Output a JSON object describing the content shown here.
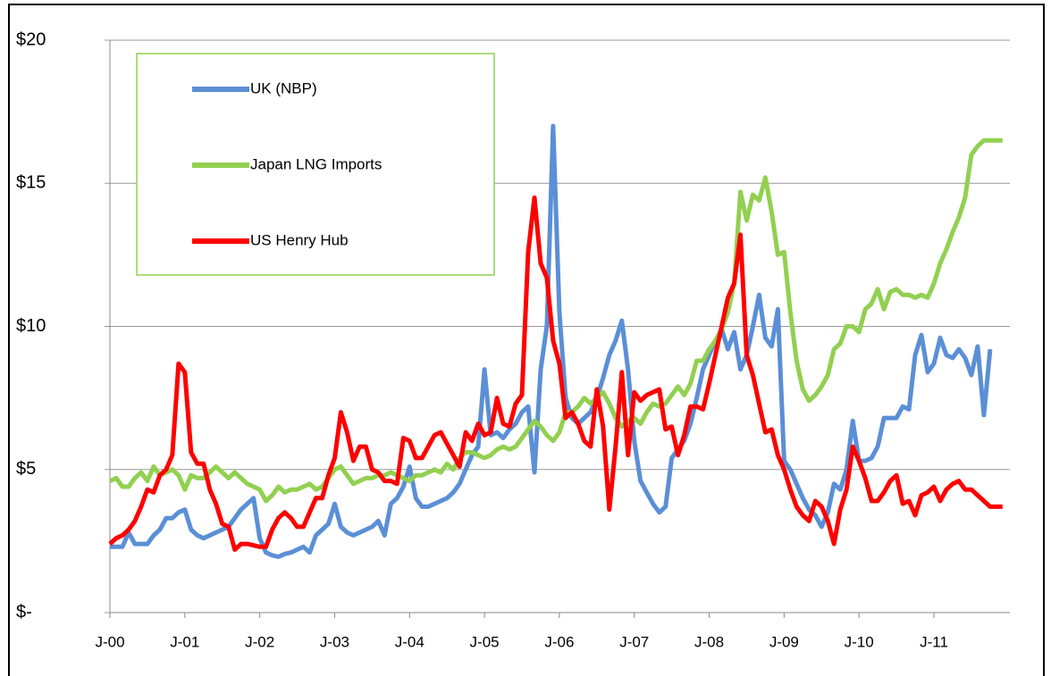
{
  "chart_data": {
    "type": "line",
    "categories": [
      "J-00",
      null,
      null,
      null,
      null,
      null,
      null,
      null,
      null,
      null,
      null,
      null,
      "J-01",
      null,
      null,
      null,
      null,
      null,
      null,
      null,
      null,
      null,
      null,
      null,
      "J-02",
      null,
      null,
      null,
      null,
      null,
      null,
      null,
      null,
      null,
      null,
      null,
      "J-03",
      null,
      null,
      null,
      null,
      null,
      null,
      null,
      null,
      null,
      null,
      null,
      "J-04",
      null,
      null,
      null,
      null,
      null,
      null,
      null,
      null,
      null,
      null,
      null,
      "J-05",
      null,
      null,
      null,
      null,
      null,
      null,
      null,
      null,
      null,
      null,
      null,
      "J-06",
      null,
      null,
      null,
      null,
      null,
      null,
      null,
      null,
      null,
      null,
      null,
      "J-07",
      null,
      null,
      null,
      null,
      null,
      null,
      null,
      null,
      null,
      null,
      null,
      "J-08",
      null,
      null,
      null,
      null,
      null,
      null,
      null,
      null,
      null,
      null,
      null,
      "J-09",
      null,
      null,
      null,
      null,
      null,
      null,
      null,
      null,
      null,
      null,
      null,
      "J-10",
      null,
      null,
      null,
      null,
      null,
      null,
      null,
      null,
      null,
      null,
      null,
      "J-11",
      null,
      null,
      null,
      null,
      null,
      null,
      null,
      null,
      null,
      null,
      null
    ],
    "series": [
      {
        "name": "UK (NBP)",
        "color": "#5b8fd6",
        "values": [
          2.3,
          2.3,
          2.3,
          2.8,
          2.4,
          2.4,
          2.4,
          2.7,
          2.9,
          3.3,
          3.3,
          3.5,
          3.6,
          2.9,
          2.7,
          2.6,
          2.7,
          2.8,
          2.9,
          3.0,
          3.3,
          3.6,
          3.8,
          4.0,
          2.6,
          2.1,
          2.0,
          1.95,
          2.05,
          2.1,
          2.2,
          2.3,
          2.1,
          2.7,
          2.9,
          3.1,
          3.8,
          3.0,
          2.8,
          2.7,
          2.8,
          2.9,
          3.0,
          3.2,
          2.7,
          3.8,
          4.0,
          4.4,
          5.1,
          4.0,
          3.7,
          3.7,
          3.8,
          3.9,
          4.0,
          4.2,
          4.5,
          5.0,
          5.5,
          5.8,
          8.5,
          6.2,
          6.3,
          6.1,
          6.4,
          6.6,
          7.0,
          7.2,
          4.9,
          8.5,
          10.0,
          17.0,
          10.5,
          7.5,
          6.8,
          6.6,
          6.8,
          7.0,
          7.5,
          8.2,
          9.0,
          9.5,
          10.2,
          8.5,
          6.0,
          4.6,
          4.2,
          3.8,
          3.5,
          3.7,
          5.4,
          5.7,
          6.0,
          6.6,
          7.5,
          8.5,
          9.0,
          9.5,
          9.9,
          9.2,
          9.8,
          8.5,
          9.0,
          10.0,
          11.1,
          9.6,
          9.3,
          10.6,
          5.3,
          5.0,
          4.5,
          4.0,
          3.6,
          3.4,
          3.0,
          3.5,
          4.5,
          4.3,
          5.0,
          6.7,
          5.3,
          5.3,
          5.4,
          5.8,
          6.8,
          6.8,
          6.8,
          7.2,
          7.1,
          9.0,
          9.7,
          8.4,
          8.7,
          9.6,
          9.0,
          8.9,
          9.2,
          8.9,
          8.3,
          9.3,
          6.9,
          9.2,
          null,
          null
        ]
      },
      {
        "name": "Japan LNG Imports",
        "color": "#92d050",
        "values": [
          4.6,
          4.7,
          4.4,
          4.4,
          4.7,
          4.9,
          4.6,
          5.1,
          4.8,
          4.9,
          5.0,
          4.8,
          4.3,
          4.8,
          4.7,
          4.7,
          4.9,
          5.1,
          4.9,
          4.7,
          4.9,
          4.7,
          4.5,
          4.4,
          4.3,
          3.9,
          4.1,
          4.4,
          4.2,
          4.3,
          4.3,
          4.4,
          4.5,
          4.3,
          4.4,
          4.7,
          5.0,
          5.1,
          4.8,
          4.5,
          4.6,
          4.7,
          4.7,
          4.8,
          4.8,
          4.9,
          4.8,
          4.7,
          4.6,
          4.8,
          4.8,
          4.9,
          5.0,
          4.9,
          5.2,
          5.0,
          5.4,
          5.6,
          5.6,
          5.5,
          5.4,
          5.5,
          5.7,
          5.8,
          5.7,
          5.8,
          6.1,
          6.4,
          6.7,
          6.5,
          6.2,
          6.0,
          6.3,
          7.0,
          7.0,
          7.2,
          7.5,
          7.3,
          7.5,
          7.7,
          7.3,
          6.8,
          6.5,
          6.7,
          6.8,
          6.6,
          7.0,
          7.3,
          7.2,
          7.3,
          7.6,
          7.9,
          7.6,
          8.0,
          8.8,
          8.8,
          9.2,
          9.5,
          9.9,
          10.5,
          11.5,
          14.7,
          13.7,
          14.6,
          14.4,
          15.2,
          14.0,
          12.5,
          12.6,
          10.5,
          8.8,
          7.8,
          7.4,
          7.6,
          7.9,
          8.3,
          9.2,
          9.4,
          10.0,
          10.0,
          9.8,
          10.6,
          10.8,
          11.3,
          10.6,
          11.2,
          11.3,
          11.1,
          11.1,
          11.0,
          11.1,
          11.0,
          11.5,
          12.2,
          12.7,
          13.3,
          13.8,
          14.5,
          16.0,
          16.3,
          16.5,
          16.5,
          16.5,
          16.5
        ]
      },
      {
        "name": "US Henry Hub",
        "color": "#ff0000",
        "values": [
          2.4,
          2.6,
          2.7,
          2.9,
          3.2,
          3.7,
          4.3,
          4.2,
          4.8,
          5.0,
          5.5,
          8.7,
          8.4,
          5.6,
          5.2,
          5.2,
          4.3,
          3.8,
          3.1,
          3.0,
          2.2,
          2.4,
          2.4,
          2.35,
          2.3,
          2.3,
          2.9,
          3.3,
          3.5,
          3.3,
          3.0,
          3.0,
          3.5,
          4.0,
          4.0,
          4.8,
          5.4,
          7.0,
          6.3,
          5.3,
          5.8,
          5.8,
          5.0,
          4.9,
          4.6,
          4.6,
          4.5,
          6.1,
          6.0,
          5.4,
          5.4,
          5.8,
          6.2,
          6.3,
          5.9,
          5.5,
          5.1,
          6.3,
          6.0,
          6.6,
          6.2,
          6.3,
          7.5,
          6.6,
          6.5,
          7.3,
          7.6,
          12.6,
          14.5,
          12.2,
          11.7,
          9.5,
          8.7,
          6.8,
          7.0,
          6.6,
          6.0,
          5.8,
          7.8,
          6.5,
          3.6,
          5.8,
          8.4,
          5.5,
          7.7,
          7.4,
          7.6,
          7.7,
          7.8,
          6.4,
          6.5,
          5.5,
          6.2,
          7.2,
          7.2,
          7.1,
          8.0,
          9.0,
          10.0,
          11.0,
          11.5,
          13.2,
          9.0,
          8.3,
          7.3,
          6.3,
          6.4,
          5.5,
          5.0,
          4.3,
          3.7,
          3.4,
          3.2,
          3.9,
          3.7,
          3.2,
          2.4,
          3.6,
          4.3,
          5.8,
          5.3,
          4.7,
          3.9,
          3.9,
          4.2,
          4.6,
          4.8,
          3.8,
          3.9,
          3.4,
          4.1,
          4.2,
          4.4,
          3.9,
          4.3,
          4.5,
          4.6,
          4.3,
          4.3,
          4.1,
          3.9,
          3.7,
          3.7,
          3.7
        ]
      }
    ],
    "ylim": [
      0,
      20
    ],
    "yticks": [
      {
        "value": 0,
        "label": "$-"
      },
      {
        "value": 5,
        "label": "$5"
      },
      {
        "value": 10,
        "label": "$10"
      },
      {
        "value": 15,
        "label": "$15"
      },
      {
        "value": 20,
        "label": "$20"
      }
    ],
    "grid": true,
    "legend": "upper left"
  }
}
